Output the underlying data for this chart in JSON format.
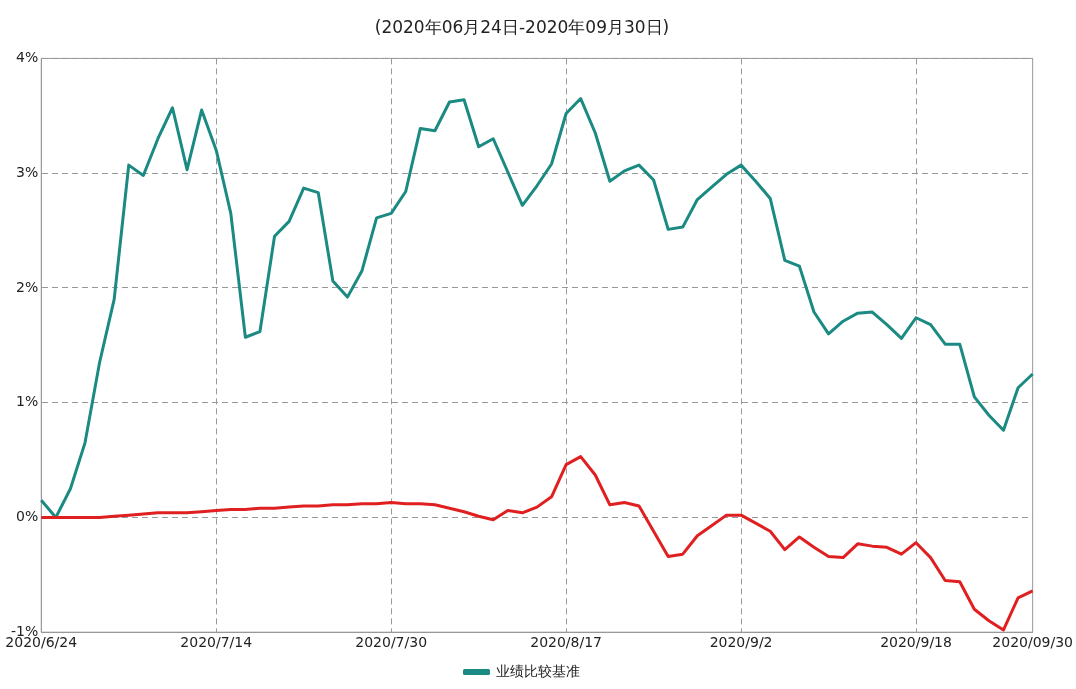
{
  "chart_data": {
    "type": "line",
    "title": "(2020年06月24日-2020年09月30日)",
    "categories": [
      "2020/6/24",
      null,
      null,
      null,
      null,
      null,
      null,
      null,
      null,
      null,
      null,
      null,
      "2020/7/14",
      null,
      null,
      null,
      null,
      null,
      null,
      null,
      null,
      null,
      null,
      null,
      "2020/7/30",
      null,
      null,
      null,
      null,
      null,
      null,
      null,
      null,
      null,
      null,
      null,
      "2020/8/17",
      null,
      null,
      null,
      null,
      null,
      null,
      null,
      null,
      null,
      null,
      null,
      "2020/9/2",
      null,
      null,
      null,
      null,
      null,
      null,
      null,
      null,
      null,
      null,
      null,
      "2020/9/18",
      null,
      null,
      null,
      null,
      null,
      null,
      null,
      "2020/09/30"
    ],
    "series": [
      {
        "color": "#e02020",
        "values": [
          0,
          0,
          0,
          0,
          0,
          0.01,
          0.02,
          0.03,
          0.04,
          0.04,
          0.04,
          0.05,
          0.06,
          0.07,
          0.07,
          0.08,
          0.08,
          0.09,
          0.1,
          0.1,
          0.11,
          0.11,
          0.12,
          0.12,
          0.13,
          0.12,
          0.12,
          0.11,
          0.08,
          0.05,
          0.01,
          -0.02,
          0.06,
          0.04,
          0.09,
          0.18,
          0.46,
          0.53,
          0.37,
          0.11,
          0.13,
          0.1,
          -0.12,
          -0.34,
          -0.32,
          -0.16,
          -0.07,
          0.02,
          0.02,
          -0.05,
          -0.12,
          -0.28,
          -0.17,
          -0.26,
          -0.34,
          -0.35,
          -0.23,
          -0.25,
          -0.26,
          -0.32,
          -0.22,
          -0.35,
          -0.55,
          -0.56,
          -0.8,
          -0.9,
          -0.98,
          -0.7,
          -0.64
        ]
      },
      {
        "name": "业绩比较基准",
        "color": "#1a8a82",
        "values": [
          0.15,
          0,
          0.25,
          0.65,
          1.35,
          1.9,
          3.07,
          2.98,
          3.3,
          3.57,
          3.03,
          3.55,
          3.2,
          2.65,
          1.57,
          1.62,
          2.45,
          2.58,
          2.87,
          2.83,
          2.06,
          1.92,
          2.15,
          2.61,
          2.65,
          2.84,
          3.39,
          3.37,
          3.62,
          3.64,
          3.23,
          3.3,
          3.01,
          2.72,
          2.89,
          3.08,
          3.52,
          3.65,
          3.35,
          2.93,
          3.02,
          3.07,
          2.94,
          2.51,
          2.53,
          2.77,
          2.88,
          2.99,
          3.07,
          2.93,
          2.78,
          2.24,
          2.19,
          1.79,
          1.6,
          1.71,
          1.78,
          1.79,
          1.68,
          1.56,
          1.74,
          1.68,
          1.51,
          1.51,
          1.05,
          0.89,
          0.76,
          1.13,
          1.25
        ]
      }
    ],
    "ylim": [
      -1,
      4
    ],
    "yticks": [
      {
        "value": -1,
        "label": "-1%"
      },
      {
        "value": 0,
        "label": "0%"
      },
      {
        "value": 1,
        "label": "1%"
      },
      {
        "value": 2,
        "label": "2%"
      },
      {
        "value": 3,
        "label": "3%"
      },
      {
        "value": 4,
        "label": "4%"
      }
    ],
    "grid": true,
    "legend": "bottom",
    "marker": "none",
    "line_style": "solid"
  }
}
